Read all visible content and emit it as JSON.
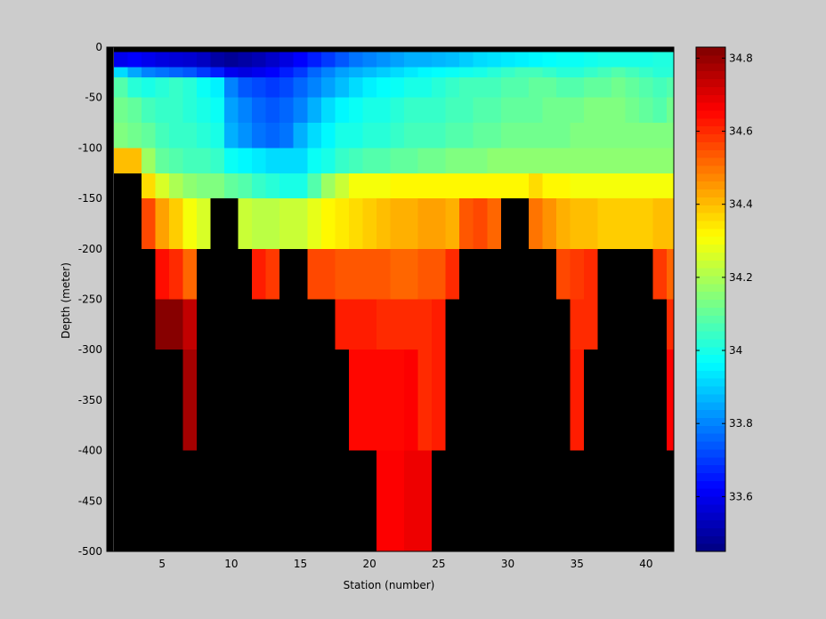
{
  "chart_data": {
    "type": "heatmap",
    "title": "",
    "xlabel": "Station (number)",
    "ylabel": "Depth (meter)",
    "xlim": [
      1,
      42
    ],
    "ylim": [
      -500,
      0
    ],
    "xticks": [
      5,
      10,
      15,
      20,
      25,
      30,
      35,
      40
    ],
    "yticks": [
      0,
      -50,
      -100,
      -150,
      -200,
      -250,
      -300,
      -350,
      -400,
      -450,
      -500
    ],
    "colorbar": {
      "colormap": "jet",
      "range": [
        33.45,
        34.83
      ],
      "ticks": [
        33.6,
        33.8,
        34,
        34.2,
        34.4,
        34.6,
        34.8
      ],
      "tick_labels": [
        "33.6",
        "33.8",
        "34",
        "34.2",
        "34.4",
        "34.6",
        "34.8"
      ]
    },
    "no_data_color": "#000000",
    "stations": [
      2,
      3,
      4,
      5,
      6,
      7,
      8,
      9,
      10,
      11,
      12,
      13,
      14,
      15,
      16,
      17,
      18,
      19,
      20,
      21,
      22,
      23,
      24,
      25,
      26,
      27,
      28,
      29,
      30,
      31,
      32,
      33,
      34,
      35,
      36,
      37,
      38,
      39,
      40,
      41,
      42
    ],
    "depth_bins": [
      {
        "top": 0,
        "bottom": -5
      },
      {
        "top": -5,
        "bottom": -20
      },
      {
        "top": -20,
        "bottom": -30
      },
      {
        "top": -30,
        "bottom": -50
      },
      {
        "top": -50,
        "bottom": -75
      },
      {
        "top": -75,
        "bottom": -100
      },
      {
        "top": -100,
        "bottom": -125
      },
      {
        "top": -125,
        "bottom": -150
      },
      {
        "top": -150,
        "bottom": -200
      },
      {
        "top": -200,
        "bottom": -250
      },
      {
        "top": -250,
        "bottom": -300
      },
      {
        "top": -300,
        "bottom": -400
      },
      {
        "top": -400,
        "bottom": -500
      }
    ],
    "values": [
      [
        null,
        null,
        null,
        null,
        null,
        null,
        null,
        null,
        null,
        null,
        null,
        null,
        null,
        null,
        null,
        null,
        null,
        null,
        null,
        null,
        null,
        null,
        null,
        null,
        null,
        null,
        null,
        null,
        null,
        null,
        null,
        null,
        null,
        null,
        null,
        null,
        null,
        null,
        null,
        null,
        null
      ],
      [
        33.6,
        33.62,
        33.6,
        33.58,
        33.57,
        33.56,
        33.54,
        33.5,
        33.48,
        33.5,
        33.52,
        33.55,
        33.58,
        33.62,
        33.66,
        33.7,
        33.74,
        33.78,
        33.8,
        33.82,
        33.84,
        33.86,
        33.86,
        33.87,
        33.88,
        33.9,
        33.92,
        33.93,
        33.94,
        33.95,
        33.96,
        33.97,
        33.98,
        33.98,
        33.99,
        34.0,
        34.0,
        34.0,
        34.0,
        34.01,
        34.01
      ],
      [
        33.92,
        33.85,
        33.8,
        33.78,
        33.76,
        33.74,
        33.7,
        33.66,
        33.6,
        33.58,
        33.6,
        33.62,
        33.66,
        33.7,
        33.76,
        33.8,
        33.84,
        33.86,
        33.88,
        33.9,
        33.92,
        33.94,
        33.96,
        33.97,
        33.98,
        33.99,
        34.0,
        34.02,
        34.04,
        34.06,
        34.06,
        34.04,
        34.02,
        34.02,
        34.04,
        34.06,
        34.08,
        34.06,
        34.04,
        34.02,
        34.02
      ],
      [
        34.08,
        34.02,
        34.0,
        34.02,
        34.04,
        34.02,
        33.98,
        33.95,
        33.8,
        33.74,
        33.72,
        33.7,
        33.72,
        33.76,
        33.8,
        33.84,
        33.88,
        33.92,
        33.95,
        33.97,
        33.98,
        34.0,
        34.0,
        34.02,
        34.04,
        34.06,
        34.06,
        34.06,
        34.08,
        34.08,
        34.1,
        34.1,
        34.08,
        34.08,
        34.1,
        34.1,
        34.12,
        34.1,
        34.08,
        34.06,
        34.08
      ],
      [
        34.12,
        34.1,
        34.06,
        34.04,
        34.04,
        34.02,
        34.0,
        33.98,
        33.84,
        33.8,
        33.76,
        33.74,
        33.76,
        33.8,
        33.86,
        33.92,
        33.96,
        33.98,
        34.0,
        34.0,
        34.02,
        34.04,
        34.04,
        34.04,
        34.06,
        34.06,
        34.08,
        34.08,
        34.1,
        34.1,
        34.1,
        34.12,
        34.12,
        34.12,
        34.14,
        34.14,
        34.14,
        34.12,
        34.1,
        34.08,
        34.12
      ],
      [
        34.14,
        34.12,
        34.1,
        34.06,
        34.04,
        34.04,
        34.02,
        34.0,
        33.86,
        33.82,
        33.78,
        33.76,
        33.78,
        33.86,
        33.92,
        33.96,
        34.0,
        34.0,
        34.02,
        34.02,
        34.04,
        34.06,
        34.06,
        34.06,
        34.08,
        34.08,
        34.1,
        34.1,
        34.12,
        34.12,
        34.12,
        34.12,
        34.12,
        34.14,
        34.14,
        34.14,
        34.14,
        34.14,
        34.14,
        34.14,
        34.14
      ],
      [
        34.4,
        34.4,
        34.18,
        34.1,
        34.08,
        34.06,
        34.06,
        34.04,
        33.98,
        33.96,
        33.94,
        33.92,
        33.92,
        33.92,
        33.98,
        34.0,
        34.04,
        34.06,
        34.08,
        34.08,
        34.1,
        34.1,
        34.12,
        34.12,
        34.14,
        34.14,
        34.14,
        34.16,
        34.16,
        34.16,
        34.16,
        34.16,
        34.16,
        34.16,
        34.16,
        34.16,
        34.16,
        34.16,
        34.16,
        34.16,
        34.16
      ],
      [
        null,
        null,
        34.36,
        34.26,
        34.2,
        34.16,
        34.14,
        34.14,
        34.1,
        34.08,
        34.04,
        34.02,
        34.0,
        34.0,
        34.08,
        34.18,
        34.24,
        34.3,
        34.3,
        34.3,
        34.32,
        34.32,
        34.32,
        34.32,
        34.32,
        34.32,
        34.32,
        34.32,
        34.32,
        34.32,
        34.36,
        34.32,
        34.32,
        34.3,
        34.3,
        34.3,
        34.3,
        34.3,
        34.3,
        34.3,
        34.3
      ],
      [
        null,
        null,
        34.56,
        34.44,
        34.38,
        34.3,
        34.26,
        null,
        null,
        34.24,
        34.22,
        34.22,
        34.24,
        34.24,
        34.28,
        34.32,
        34.34,
        34.36,
        34.38,
        34.4,
        34.42,
        34.42,
        34.44,
        34.44,
        34.42,
        34.54,
        34.56,
        34.52,
        null,
        null,
        34.5,
        34.46,
        34.42,
        34.4,
        34.4,
        34.38,
        34.38,
        34.38,
        34.38,
        34.4,
        34.4
      ],
      [
        null,
        null,
        null,
        34.64,
        34.6,
        34.52,
        null,
        null,
        null,
        null,
        34.62,
        34.58,
        null,
        null,
        34.56,
        34.56,
        34.54,
        34.54,
        34.54,
        34.54,
        34.52,
        34.52,
        34.54,
        34.54,
        34.6,
        null,
        null,
        null,
        null,
        null,
        null,
        null,
        34.56,
        34.58,
        34.6,
        null,
        null,
        null,
        null,
        34.58,
        34.52
      ],
      [
        null,
        null,
        null,
        34.82,
        34.82,
        34.74,
        null,
        null,
        null,
        null,
        null,
        null,
        null,
        null,
        null,
        null,
        34.62,
        34.62,
        34.62,
        34.6,
        34.6,
        34.6,
        34.6,
        34.62,
        null,
        null,
        null,
        null,
        null,
        null,
        null,
        null,
        null,
        34.6,
        34.6,
        null,
        null,
        null,
        null,
        null,
        34.6
      ],
      [
        null,
        null,
        null,
        null,
        null,
        34.78,
        null,
        null,
        null,
        null,
        null,
        null,
        null,
        null,
        null,
        null,
        null,
        34.65,
        34.65,
        34.65,
        34.65,
        34.66,
        34.6,
        34.62,
        null,
        null,
        null,
        null,
        null,
        null,
        null,
        null,
        null,
        34.62,
        null,
        null,
        null,
        null,
        null,
        null,
        34.66
      ],
      [
        null,
        null,
        null,
        null,
        null,
        null,
        null,
        null,
        null,
        null,
        null,
        null,
        null,
        null,
        null,
        null,
        null,
        null,
        null,
        34.66,
        34.66,
        34.68,
        34.68,
        null,
        null,
        null,
        null,
        null,
        null,
        null,
        null,
        null,
        null,
        null,
        null,
        null,
        null,
        null,
        null,
        null,
        null
      ]
    ]
  }
}
